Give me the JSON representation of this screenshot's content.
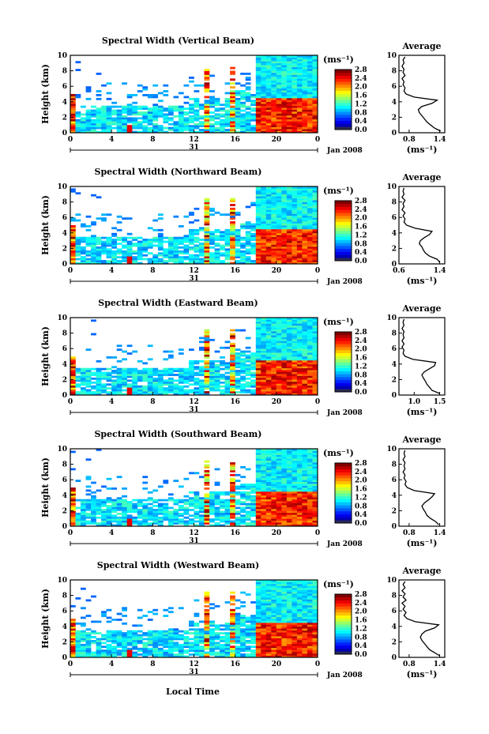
{
  "figure": {
    "x_axis_label": "Local Time",
    "date_label": "Jan 2008",
    "day_label": "31",
    "unit_label": "(ms⁻¹)",
    "profile_unit_label": "(ms⁻¹)",
    "height_label": "Height (km)",
    "profile_title": "Average"
  },
  "chart_data": [
    {
      "type": "heatmap",
      "title": "Spectral Width (Vertical Beam)",
      "ylabel": "Height (km)",
      "x_ticks": [
        "0",
        "4",
        "8",
        "12",
        "16",
        "20",
        "0"
      ],
      "x_range_hours": [
        0,
        24
      ],
      "y_ticks": [
        "0",
        "2",
        "4",
        "6",
        "8",
        "10"
      ],
      "ylim": [
        0,
        10
      ],
      "colorbar_ticks": [
        "0.0",
        "0.4",
        "0.8",
        "1.2",
        "1.6",
        "2.0",
        "2.4",
        "2.8"
      ],
      "colorbar_range": [
        0,
        2.8
      ],
      "profile": {
        "title": "Average",
        "x_ticks": [
          "0.8",
          "1.4"
        ],
        "x_range": [
          0.6,
          1.5
        ],
        "ylim": [
          0,
          10
        ],
        "heights": [
          0.2,
          0.6,
          1.0,
          1.4,
          1.8,
          2.2,
          2.6,
          3.0,
          3.4,
          3.8,
          4.2,
          4.6,
          5.0,
          5.4,
          5.8,
          6.2,
          6.6,
          7.0,
          7.4,
          7.8,
          8.2,
          8.6,
          9.0,
          9.4,
          9.8
        ],
        "values": [
          1.42,
          1.3,
          1.22,
          1.15,
          1.1,
          1.05,
          1.0,
          0.98,
          1.05,
          1.25,
          1.35,
          0.9,
          0.74,
          0.7,
          0.72,
          0.68,
          0.7,
          0.66,
          0.72,
          0.68,
          0.7,
          0.66,
          0.7,
          0.68,
          0.72
        ]
      }
    },
    {
      "type": "heatmap",
      "title": "Spectral Width (Northward Beam)",
      "ylabel": "Height (km)",
      "x_ticks": [
        "0",
        "4",
        "8",
        "12",
        "16",
        "20",
        "0"
      ],
      "x_range_hours": [
        0,
        24
      ],
      "y_ticks": [
        "0",
        "2",
        "4",
        "6",
        "8",
        "10"
      ],
      "ylim": [
        0,
        10
      ],
      "colorbar_ticks": [
        "0.0",
        "0.4",
        "0.8",
        "1.2",
        "1.6",
        "2.0",
        "2.4",
        "2.8"
      ],
      "colorbar_range": [
        0,
        2.8
      ],
      "profile": {
        "title": "Average",
        "x_ticks": [
          "0.6",
          "1.4"
        ],
        "x_range": [
          0.6,
          1.5
        ],
        "ylim": [
          0,
          10
        ],
        "heights": [
          0.2,
          0.6,
          1.0,
          1.4,
          1.8,
          2.2,
          2.6,
          3.0,
          3.4,
          3.8,
          4.2,
          4.6,
          5.0,
          5.4,
          5.8,
          6.2,
          6.6,
          7.0,
          7.4,
          7.8,
          8.2,
          8.6,
          9.0,
          9.4,
          9.8
        ],
        "values": [
          1.4,
          1.35,
          1.2,
          1.12,
          1.08,
          1.05,
          1.0,
          1.02,
          1.1,
          1.2,
          1.25,
          0.92,
          0.75,
          0.7,
          0.72,
          0.68,
          0.72,
          0.66,
          0.7,
          0.68,
          0.72,
          0.66,
          0.7,
          0.68,
          0.7
        ]
      }
    },
    {
      "type": "heatmap",
      "title": "Spectral Width (Eastward Beam)",
      "ylabel": "Height (km)",
      "x_ticks": [
        "0",
        "4",
        "8",
        "12",
        "16",
        "20",
        "0"
      ],
      "x_range_hours": [
        0,
        24
      ],
      "y_ticks": [
        "0",
        "2",
        "4",
        "6",
        "8",
        "10"
      ],
      "ylim": [
        0,
        10
      ],
      "colorbar_ticks": [
        "0.0",
        "0.4",
        "0.8",
        "1.2",
        "1.6",
        "2.0",
        "2.4",
        "2.8"
      ],
      "colorbar_range": [
        0,
        2.8
      ],
      "profile": {
        "title": "Average",
        "x_ticks": [
          "1.0",
          "1.5"
        ],
        "x_range": [
          0.7,
          1.6
        ],
        "ylim": [
          0,
          10
        ],
        "heights": [
          0.2,
          0.6,
          1.0,
          1.4,
          1.8,
          2.2,
          2.6,
          3.0,
          3.4,
          3.8,
          4.2,
          4.6,
          5.0,
          5.4,
          5.8,
          6.2,
          6.6,
          7.0,
          7.4,
          7.8,
          8.2,
          8.6,
          9.0,
          9.4,
          9.8
        ],
        "values": [
          1.5,
          1.35,
          1.3,
          1.25,
          1.22,
          1.18,
          1.15,
          1.2,
          1.3,
          1.4,
          1.42,
          0.98,
          0.82,
          0.78,
          0.8,
          0.76,
          0.8,
          0.76,
          0.8,
          0.78,
          0.8,
          0.76,
          0.8,
          0.78,
          0.8
        ]
      }
    },
    {
      "type": "heatmap",
      "title": "Spectral Width (Southward Beam)",
      "ylabel": "Height (km)",
      "x_ticks": [
        "0",
        "4",
        "8",
        "12",
        "16",
        "20",
        "0"
      ],
      "x_range_hours": [
        0,
        24
      ],
      "y_ticks": [
        "0",
        "2",
        "4",
        "6",
        "8",
        "10"
      ],
      "ylim": [
        0,
        10
      ],
      "colorbar_ticks": [
        "0.0",
        "0.4",
        "0.8",
        "1.2",
        "1.6",
        "2.0",
        "2.4",
        "2.8"
      ],
      "colorbar_range": [
        0,
        2.8
      ],
      "profile": {
        "title": "Average",
        "x_ticks": [
          "0.8",
          "1.4"
        ],
        "x_range": [
          0.6,
          1.5
        ],
        "ylim": [
          0,
          10
        ],
        "heights": [
          0.2,
          0.6,
          1.0,
          1.4,
          1.8,
          2.2,
          2.6,
          3.0,
          3.4,
          3.8,
          4.2,
          4.6,
          5.0,
          5.4,
          5.8,
          6.2,
          6.6,
          7.0,
          7.4,
          7.8,
          8.2,
          8.6,
          9.0,
          9.4,
          9.8
        ],
        "values": [
          1.38,
          1.32,
          1.22,
          1.15,
          1.12,
          1.08,
          1.05,
          1.1,
          1.18,
          1.25,
          1.3,
          0.9,
          0.76,
          0.72,
          0.74,
          0.7,
          0.72,
          0.68,
          0.72,
          0.7,
          0.72,
          0.68,
          0.72,
          0.7,
          0.72
        ]
      }
    },
    {
      "type": "heatmap",
      "title": "Spectral Width (Westward Beam)",
      "ylabel": "Height (km)",
      "x_ticks": [
        "0",
        "4",
        "8",
        "12",
        "16",
        "20",
        "0"
      ],
      "x_range_hours": [
        0,
        24
      ],
      "y_ticks": [
        "0",
        "2",
        "4",
        "6",
        "8",
        "10"
      ],
      "ylim": [
        0,
        10
      ],
      "colorbar_ticks": [
        "0.0",
        "0.4",
        "0.8",
        "1.2",
        "1.6",
        "2.0",
        "2.4",
        "2.8"
      ],
      "colorbar_range": [
        0,
        2.8
      ],
      "profile": {
        "title": "Average",
        "x_ticks": [
          "0.8",
          "1.4"
        ],
        "x_range": [
          0.6,
          1.5
        ],
        "ylim": [
          0,
          10
        ],
        "heights": [
          0.2,
          0.6,
          1.0,
          1.4,
          1.8,
          2.2,
          2.6,
          3.0,
          3.4,
          3.8,
          4.2,
          4.6,
          5.0,
          5.4,
          5.8,
          6.2,
          6.6,
          7.0,
          7.4,
          7.8,
          8.2,
          8.6,
          9.0,
          9.4,
          9.8
        ],
        "values": [
          1.4,
          1.3,
          1.2,
          1.15,
          1.1,
          1.05,
          1.02,
          1.05,
          1.12,
          1.3,
          1.38,
          0.92,
          0.76,
          0.7,
          0.74,
          0.68,
          0.72,
          0.66,
          0.74,
          0.68,
          0.72,
          0.66,
          0.72,
          0.68,
          0.72
        ]
      }
    }
  ]
}
